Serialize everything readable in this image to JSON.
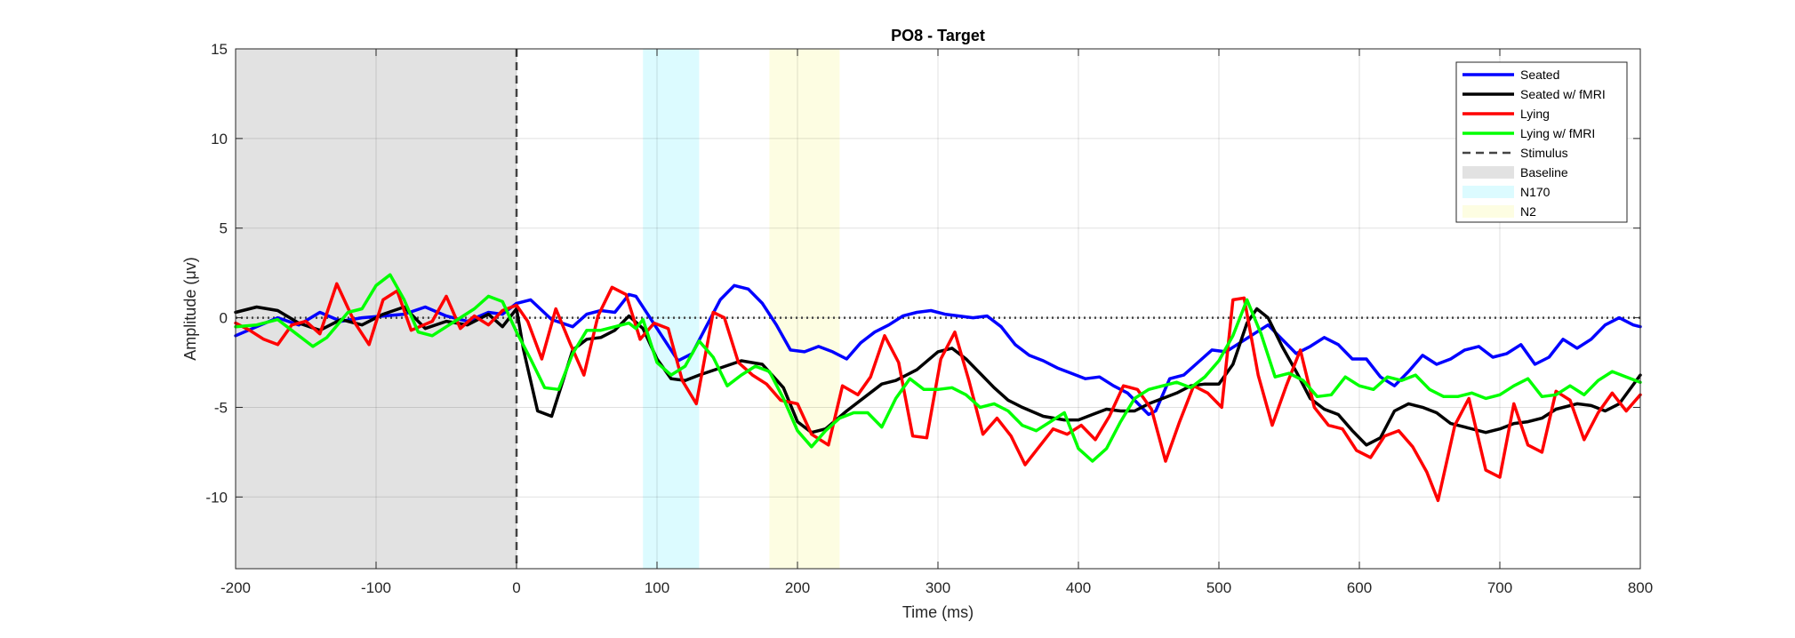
{
  "chart_data": {
    "type": "line",
    "title": "PO8 - Target",
    "xlabel": "Time (ms)",
    "ylabel": "Amplitude (μv)",
    "xlim": [
      -200,
      800
    ],
    "ylim": [
      -14,
      15
    ],
    "xticks": [
      -200,
      -100,
      0,
      100,
      200,
      300,
      400,
      500,
      600,
      700,
      800
    ],
    "yticks": [
      -10,
      -5,
      0,
      5,
      10,
      15
    ],
    "grid": true,
    "legend_position": "top-right",
    "regions": [
      {
        "name": "Baseline",
        "x": [
          -200,
          0
        ],
        "color": "#e2e2e2"
      },
      {
        "name": "N170",
        "x": [
          90,
          130
        ],
        "color": "#dcfbff"
      },
      {
        "name": "N2",
        "x": [
          180,
          230
        ],
        "color": "#fdfde2"
      }
    ],
    "reference_lines": [
      {
        "name": "Stimulus",
        "orientation": "vertical",
        "x": 0,
        "color": "#444444",
        "style": "dashed"
      },
      {
        "orientation": "horizontal",
        "y": 0,
        "color": "#444444",
        "style": "dotted"
      }
    ],
    "series": [
      {
        "name": "Seated",
        "color": "#0000ff",
        "x": [
          -200,
          -185,
          -170,
          -155,
          -140,
          -125,
          -110,
          -95,
          -80,
          -65,
          -50,
          -35,
          -20,
          -10,
          0,
          10,
          25,
          40,
          50,
          60,
          70,
          80,
          85,
          95,
          105,
          115,
          125,
          135,
          145,
          155,
          165,
          175,
          185,
          195,
          205,
          215,
          225,
          235,
          245,
          255,
          265,
          275,
          285,
          295,
          305,
          315,
          325,
          335,
          345,
          355,
          365,
          375,
          385,
          395,
          405,
          415,
          425,
          435,
          440,
          450,
          455,
          465,
          475,
          485,
          495,
          505,
          515,
          525,
          535,
          545,
          555,
          565,
          575,
          585,
          595,
          605,
          615,
          625,
          635,
          645,
          655,
          665,
          675,
          685,
          695,
          705,
          715,
          725,
          735,
          745,
          755,
          765,
          775,
          785,
          795,
          800
        ],
        "y": [
          -1,
          -0.5,
          0,
          -0.4,
          0.3,
          -0.2,
          0,
          0.1,
          0.2,
          0.6,
          0.1,
          -0.2,
          0.3,
          0.2,
          0.8,
          1.0,
          -0.1,
          -0.5,
          0.2,
          0.4,
          0.3,
          1.3,
          1.2,
          0,
          -1.2,
          -2.4,
          -2.0,
          -0.5,
          1.0,
          1.8,
          1.6,
          0.8,
          -0.4,
          -1.8,
          -1.9,
          -1.6,
          -1.9,
          -2.3,
          -1.4,
          -0.8,
          -0.4,
          0.1,
          0.3,
          0.4,
          0.2,
          0.1,
          0.0,
          0.1,
          -0.5,
          -1.5,
          -2.1,
          -2.4,
          -2.8,
          -3.1,
          -3.4,
          -3.3,
          -3.8,
          -4.2,
          -4.6,
          -5.4,
          -5.2,
          -3.4,
          -3.2,
          -2.5,
          -1.8,
          -1.9,
          -1.4,
          -0.9,
          -0.4,
          -1.2,
          -2.0,
          -1.6,
          -1.1,
          -1.5,
          -2.3,
          -2.3,
          -3.3,
          -3.8,
          -3.0,
          -2.1,
          -2.6,
          -2.3,
          -1.8,
          -1.6,
          -2.2,
          -2.0,
          -1.5,
          -2.6,
          -2.2,
          -1.2,
          -1.7,
          -1.2,
          -0.4,
          0.0,
          -0.4,
          -0.5
        ]
      },
      {
        "name": "Seated w/ fMRI",
        "color": "#000000",
        "x": [
          -200,
          -185,
          -170,
          -155,
          -140,
          -125,
          -110,
          -95,
          -80,
          -65,
          -50,
          -35,
          -20,
          -10,
          0,
          5,
          15,
          25,
          40,
          50,
          60,
          70,
          80,
          90,
          100,
          110,
          120,
          130,
          145,
          160,
          175,
          190,
          200,
          210,
          220,
          235,
          250,
          260,
          270,
          285,
          300,
          310,
          320,
          330,
          340,
          350,
          360,
          375,
          390,
          400,
          410,
          420,
          430,
          440,
          450,
          460,
          470,
          480,
          490,
          500,
          510,
          520,
          527,
          535,
          545,
          555,
          565,
          575,
          585,
          595,
          605,
          615,
          625,
          635,
          645,
          655,
          665,
          675,
          690,
          700,
          710,
          720,
          730,
          740,
          755,
          765,
          775,
          785,
          800
        ],
        "y": [
          0.3,
          0.6,
          0.4,
          -0.3,
          -0.7,
          -0.1,
          -0.4,
          0.2,
          0.6,
          -0.6,
          -0.2,
          -0.4,
          0.2,
          -0.5,
          0.5,
          -1.8,
          -5.2,
          -5.5,
          -1.8,
          -1.2,
          -1.1,
          -0.7,
          0.1,
          -0.6,
          -2.3,
          -3.4,
          -3.5,
          -3.2,
          -2.8,
          -2.4,
          -2.6,
          -3.9,
          -5.8,
          -6.4,
          -6.2,
          -5.2,
          -4.3,
          -3.7,
          -3.5,
          -2.9,
          -1.9,
          -1.7,
          -2.3,
          -3.1,
          -3.9,
          -4.6,
          -5.0,
          -5.5,
          -5.7,
          -5.7,
          -5.4,
          -5.1,
          -5.2,
          -5.2,
          -4.8,
          -4.5,
          -4.2,
          -3.8,
          -3.7,
          -3.7,
          -2.6,
          -0.3,
          0.5,
          0,
          -1.6,
          -3.0,
          -4.5,
          -5.1,
          -5.4,
          -6.3,
          -7.1,
          -6.7,
          -5.2,
          -4.8,
          -5.0,
          -5.3,
          -5.9,
          -6.1,
          -6.4,
          -6.2,
          -5.9,
          -5.8,
          -5.6,
          -5.1,
          -4.8,
          -4.9,
          -5.2,
          -4.8,
          -3.2
        ]
      },
      {
        "name": "Lying",
        "color": "#ff0000",
        "x": [
          -200,
          -190,
          -180,
          -170,
          -160,
          -150,
          -140,
          -128,
          -115,
          -105,
          -95,
          -85,
          -75,
          -60,
          -50,
          -40,
          -30,
          -20,
          -10,
          0,
          8,
          18,
          28,
          38,
          48,
          58,
          68,
          78,
          88,
          98,
          108,
          118,
          128,
          140,
          148,
          158,
          168,
          178,
          188,
          200,
          210,
          222,
          232,
          243,
          252,
          262,
          272,
          282,
          292,
          302,
          312,
          322,
          332,
          342,
          352,
          362,
          372,
          382,
          392,
          402,
          412,
          422,
          432,
          442,
          452,
          462,
          472,
          482,
          492,
          502,
          510,
          518,
          528,
          538,
          548,
          558,
          568,
          578,
          588,
          598,
          608,
          618,
          628,
          638,
          648,
          656,
          668,
          678,
          690,
          700,
          710,
          720,
          730,
          740,
          750,
          760,
          770,
          780,
          790,
          800
        ],
        "y": [
          -0.3,
          -0.7,
          -1.2,
          -1.5,
          -0.4,
          -0.2,
          -0.9,
          1.9,
          -0.3,
          -1.5,
          1.0,
          1.5,
          -0.7,
          -0.2,
          1.2,
          -0.6,
          0.1,
          -0.4,
          0.4,
          0.7,
          -0.2,
          -2.3,
          0.5,
          -1.4,
          -3.2,
          0.1,
          1.7,
          1.3,
          -1.2,
          -0.3,
          -0.6,
          -3.5,
          -4.8,
          0.3,
          0,
          -2.5,
          -3.2,
          -3.7,
          -4.6,
          -4.8,
          -6.5,
          -7.1,
          -3.8,
          -4.3,
          -3.3,
          -1.0,
          -2.5,
          -6.6,
          -6.7,
          -2.3,
          -0.8,
          -3.5,
          -6.5,
          -5.6,
          -6.6,
          -8.2,
          -7.2,
          -6.2,
          -6.5,
          -6.0,
          -6.8,
          -5.5,
          -3.8,
          -4.0,
          -5.1,
          -8.0,
          -5.8,
          -3.8,
          -4.2,
          -5.0,
          1.0,
          1.1,
          -3.2,
          -6.0,
          -3.8,
          -1.8,
          -5.0,
          -6.0,
          -6.2,
          -7.4,
          -7.8,
          -6.6,
          -6.3,
          -7.2,
          -8.6,
          -10.2,
          -6.0,
          -4.5,
          -8.5,
          -8.9,
          -4.8,
          -7.1,
          -7.5,
          -4.1,
          -4.6,
          -6.8,
          -5.3,
          -4.2,
          -5.2,
          -4.3
        ]
      },
      {
        "name": "Lying w/ fMRI",
        "color": "#00ff00",
        "x": [
          -200,
          -185,
          -170,
          -155,
          -145,
          -135,
          -120,
          -110,
          -100,
          -90,
          -80,
          -70,
          -60,
          -50,
          -40,
          -30,
          -20,
          -10,
          0,
          10,
          20,
          30,
          40,
          50,
          60,
          70,
          80,
          85,
          90,
          100,
          110,
          120,
          130,
          140,
          150,
          160,
          170,
          180,
          190,
          200,
          210,
          220,
          230,
          240,
          250,
          260,
          270,
          280,
          290,
          300,
          310,
          320,
          330,
          340,
          350,
          360,
          370,
          380,
          390,
          400,
          410,
          420,
          430,
          440,
          450,
          460,
          470,
          480,
          490,
          500,
          510,
          520,
          530,
          540,
          550,
          560,
          570,
          580,
          590,
          600,
          610,
          620,
          630,
          640,
          650,
          660,
          670,
          680,
          690,
          700,
          710,
          720,
          730,
          740,
          750,
          760,
          770,
          780,
          790,
          800
        ],
        "y": [
          -0.5,
          -0.4,
          -0.1,
          -1.0,
          -1.6,
          -1.1,
          0.3,
          0.5,
          1.8,
          2.4,
          1.0,
          -0.8,
          -1.0,
          -0.5,
          0.0,
          0.5,
          1.2,
          0.9,
          -0.8,
          -2.3,
          -3.9,
          -4.0,
          -2.0,
          -0.7,
          -0.7,
          -0.5,
          -0.3,
          -0.6,
          -0.1,
          -2.5,
          -3.2,
          -2.7,
          -1.3,
          -2.2,
          -3.8,
          -3.2,
          -2.7,
          -3.0,
          -4.5,
          -6.3,
          -7.2,
          -6.3,
          -5.6,
          -5.3,
          -5.3,
          -6.1,
          -4.5,
          -3.4,
          -4.0,
          -4.0,
          -3.9,
          -4.3,
          -5.0,
          -4.8,
          -5.2,
          -6.0,
          -6.3,
          -5.8,
          -5.3,
          -7.3,
          -8.0,
          -7.3,
          -5.8,
          -4.5,
          -4.0,
          -3.8,
          -3.6,
          -3.9,
          -3.3,
          -2.4,
          -1.0,
          1.0,
          -0.9,
          -3.3,
          -3.1,
          -3.5,
          -4.4,
          -4.3,
          -3.3,
          -3.8,
          -4.0,
          -3.3,
          -3.5,
          -3.2,
          -4.0,
          -4.4,
          -4.4,
          -4.2,
          -4.5,
          -4.3,
          -3.8,
          -3.4,
          -4.4,
          -4.3,
          -3.8,
          -4.3,
          -3.5,
          -3.0,
          -3.3,
          -3.6
        ]
      }
    ]
  },
  "legend": {
    "items": [
      {
        "label": "Seated",
        "kind": "line",
        "color": "#0000ff"
      },
      {
        "label": "Seated w/ fMRI",
        "kind": "line",
        "color": "#000000"
      },
      {
        "label": "Lying",
        "kind": "line",
        "color": "#ff0000"
      },
      {
        "label": "Lying w/ fMRI",
        "kind": "line",
        "color": "#00ff00"
      },
      {
        "label": "Stimulus",
        "kind": "dashed",
        "color": "#444444"
      },
      {
        "label": "Baseline",
        "kind": "patch",
        "color": "#e2e2e2"
      },
      {
        "label": "N170",
        "kind": "patch",
        "color": "#dcfbff"
      },
      {
        "label": "N2",
        "kind": "patch",
        "color": "#fdfde2"
      }
    ]
  }
}
